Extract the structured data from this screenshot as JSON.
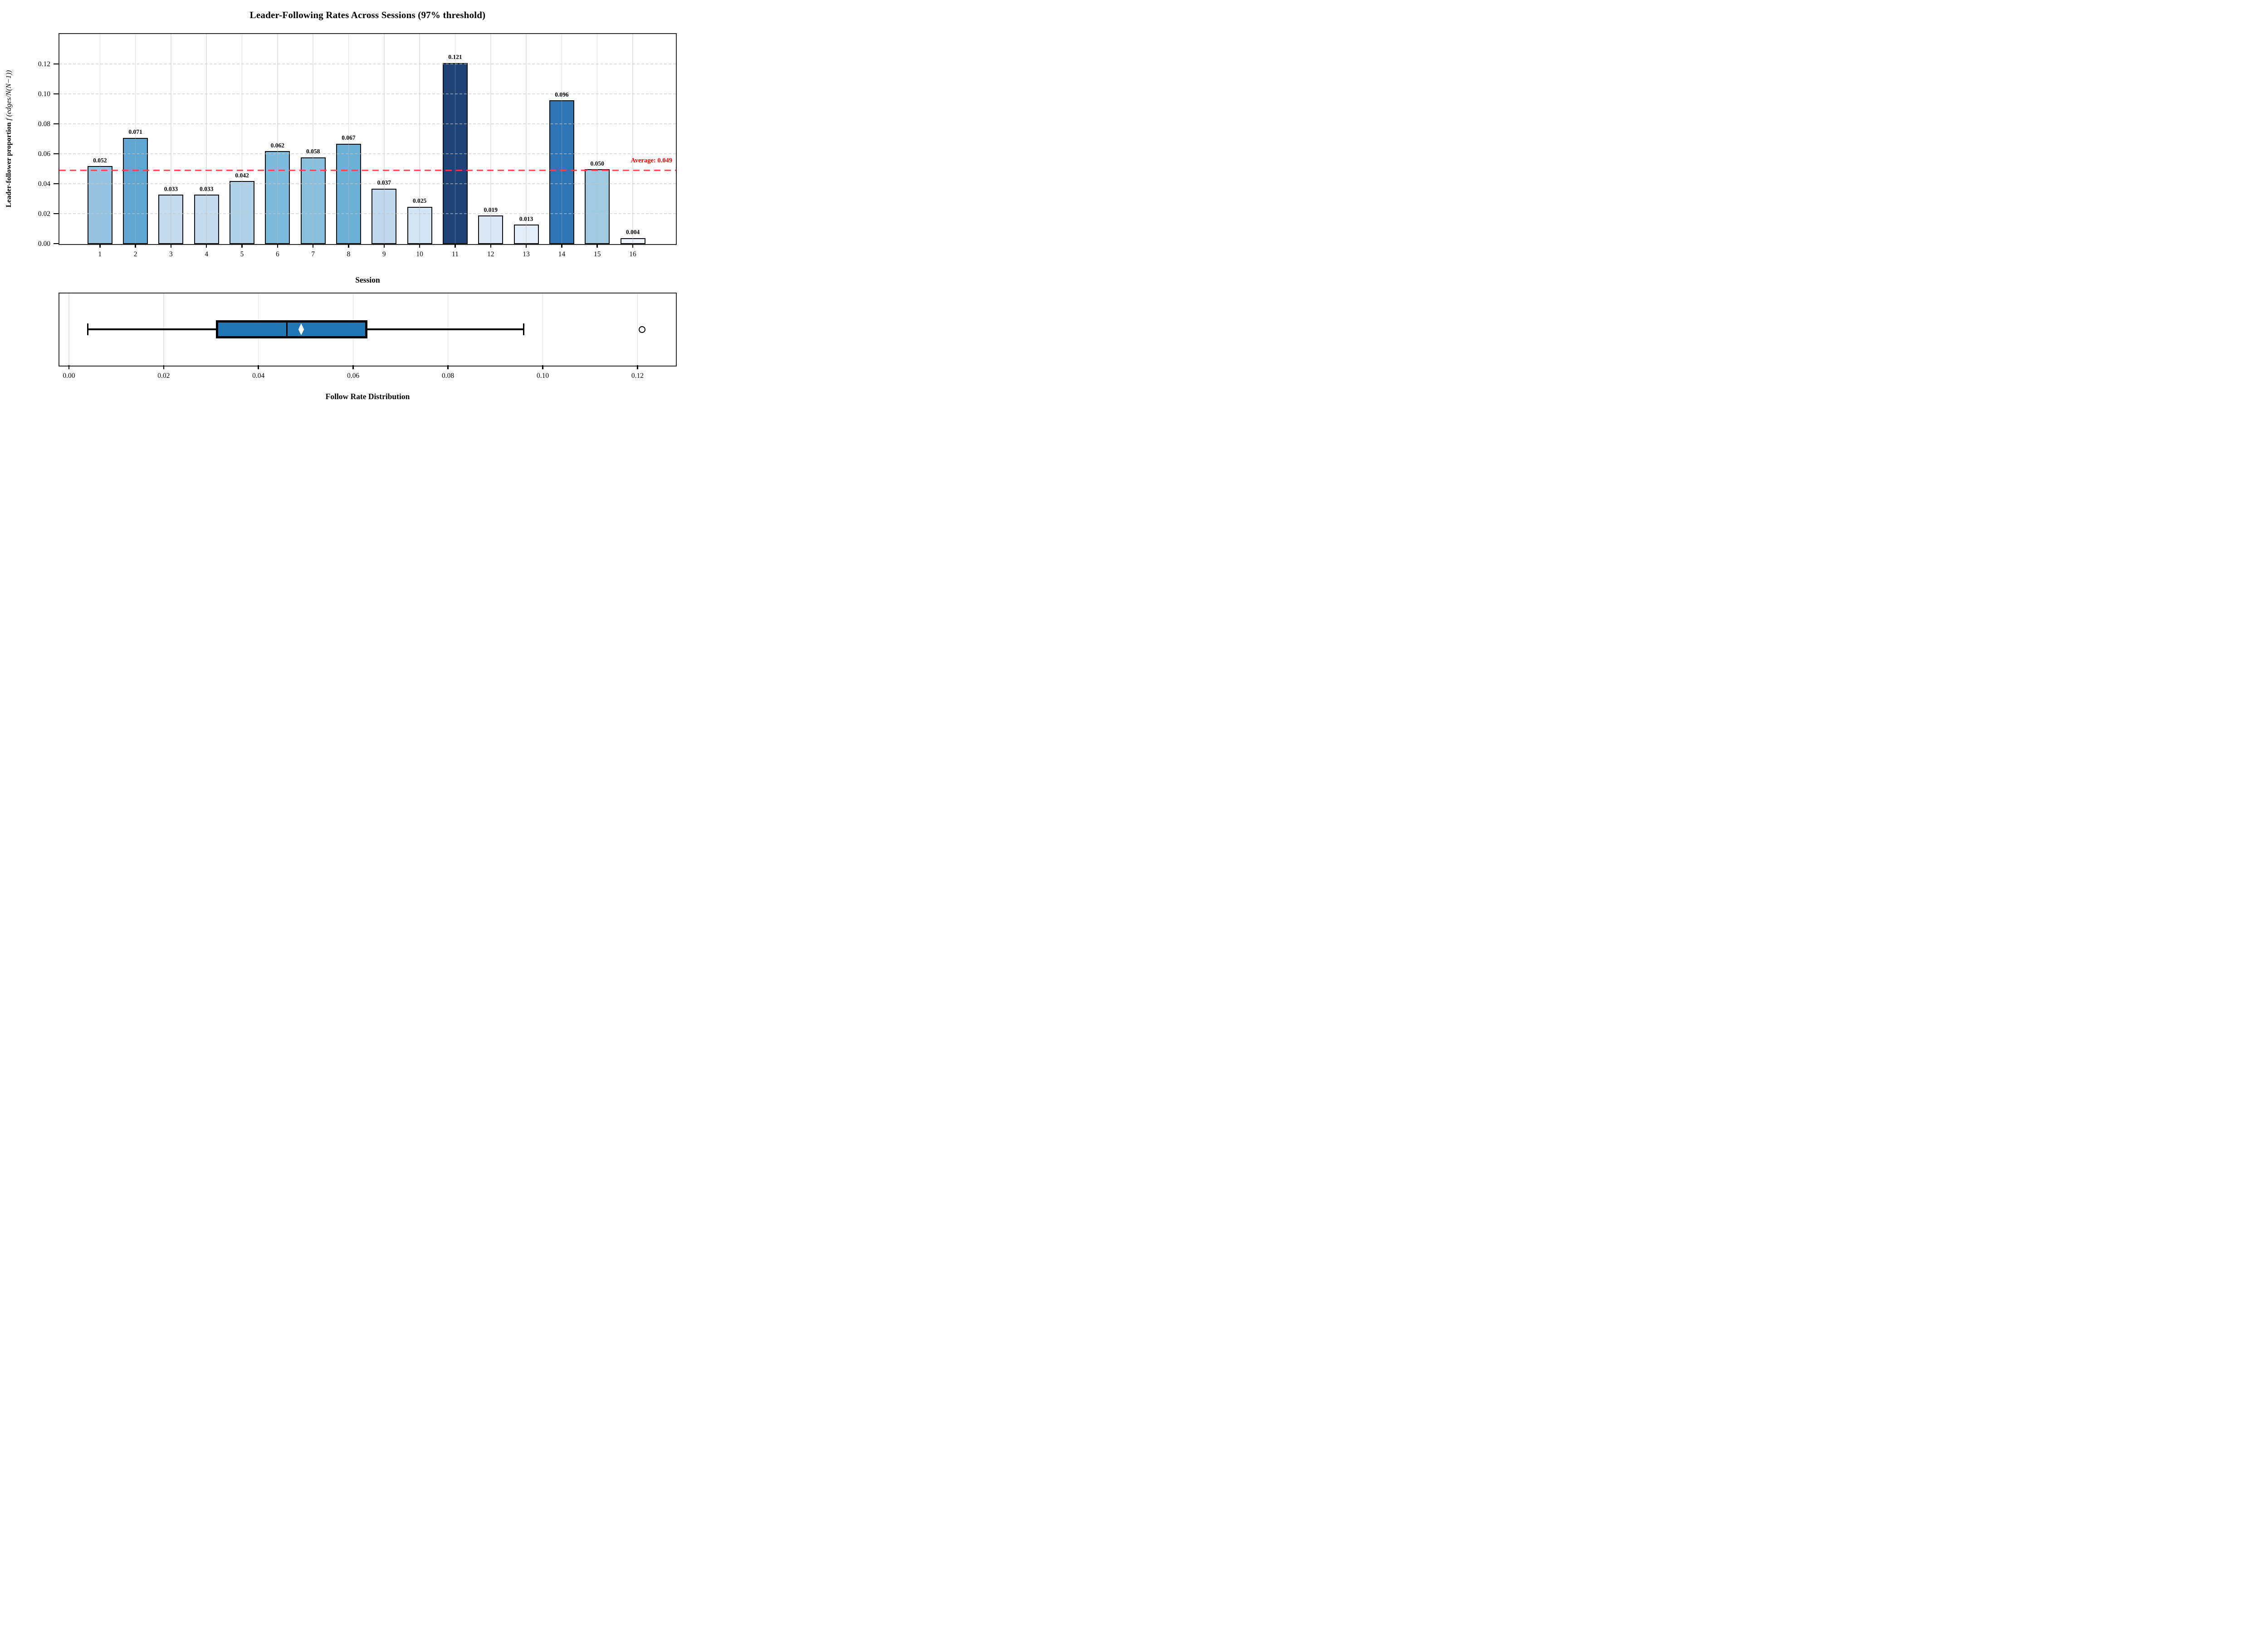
{
  "chart_data": [
    {
      "type": "bar",
      "title": "Leader-Following Rates Across Sessions (97% threshold)",
      "xlabel": "Session",
      "ylabel": "Leader-follower proportion f (edges/N(N−1))",
      "ylabel_text": "Leader-follower proportion",
      "ylabel_math": "f (edges/N(N−1))",
      "categories": [
        "1",
        "2",
        "3",
        "4",
        "5",
        "6",
        "7",
        "8",
        "9",
        "10",
        "11",
        "12",
        "13",
        "14",
        "15",
        "16"
      ],
      "values": [
        0.052,
        0.071,
        0.033,
        0.033,
        0.042,
        0.062,
        0.058,
        0.067,
        0.037,
        0.025,
        0.121,
        0.019,
        0.013,
        0.096,
        0.05,
        0.004
      ],
      "bar_labels": [
        "0.052",
        "0.071",
        "0.033",
        "0.033",
        "0.042",
        "0.062",
        "0.058",
        "0.067",
        "0.037",
        "0.025",
        "0.121",
        "0.019",
        "0.013",
        "0.096",
        "0.050",
        "0.004"
      ],
      "bar_colors": [
        "#96c3e0",
        "#5fa6d1",
        "#c5dcef",
        "#c5dcef",
        "#b0d2e9",
        "#7db9da",
        "#89c0dd",
        "#6cb0d5",
        "#bfd8ed",
        "#d3e4f3",
        "#1f4377",
        "#dbe9f6",
        "#e4eef9",
        "#2e75b6",
        "#9fcae1",
        "#f0f5fc"
      ],
      "bar_edge_color": "#0e0e13",
      "xlim": [
        -0.14,
        17.2
      ],
      "ylim": [
        0,
        0.14
      ],
      "yticks": [
        0,
        0.02,
        0.04,
        0.06,
        0.08,
        0.1,
        0.12
      ],
      "ytick_labels": [
        "0.00",
        "0.02",
        "0.04",
        "0.06",
        "0.08",
        "0.10",
        "0.12"
      ],
      "grid": {
        "horizontal": "dashed-lightgray",
        "vertical": "solid-lightgray",
        "axisbelow": false
      },
      "average_line": {
        "value": 0.049,
        "label": "Average: 0.049",
        "line_color": "#ff3b3b",
        "label_color": "#ff0000",
        "style": "dashed"
      }
    },
    {
      "type": "box",
      "xlabel": "Follow Rate Distribution",
      "orientation": "horizontal",
      "xlim": [
        -0.002,
        0.128
      ],
      "xticks": [
        0,
        0.02,
        0.04,
        0.06,
        0.08,
        0.1,
        0.12
      ],
      "xtick_labels": [
        "0.00",
        "0.02",
        "0.04",
        "0.06",
        "0.08",
        "0.10",
        "0.12"
      ],
      "stats": {
        "whisker_low": 0.004,
        "q1": 0.031,
        "median": 0.046,
        "mean": 0.049,
        "q3": 0.063,
        "whisker_high": 0.096,
        "outliers": [
          0.121
        ]
      },
      "box_fill": "#2177b4",
      "box_edge_color": "#000000",
      "median_color": "#000000",
      "mean_marker": {
        "shape": "diamond",
        "fill": "#ffffff"
      },
      "outlier_marker": {
        "shape": "circle",
        "fill": "#ffffff",
        "edge": "#000000"
      },
      "grid": {
        "vertical": "solid-lightgray"
      }
    }
  ]
}
